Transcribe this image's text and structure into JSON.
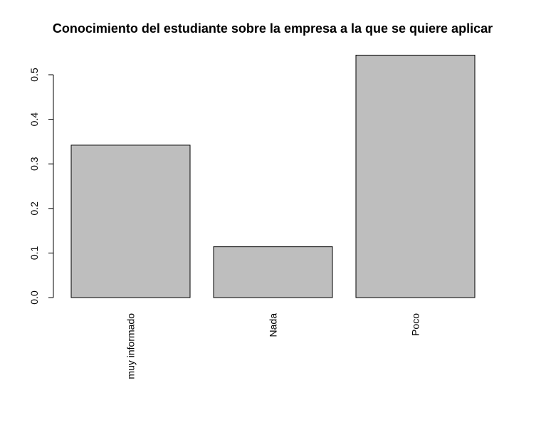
{
  "chart_data": {
    "type": "bar",
    "title": "Conocimiento del estudiante sobre la empresa a la que se quiere aplicar",
    "xlabel": "",
    "ylabel": "",
    "categories": [
      "muy informado",
      "Nada",
      "Poco"
    ],
    "values": [
      0.342,
      0.114,
      0.544
    ],
    "ylim": [
      0,
      0.5
    ],
    "yticks": [
      "0.0",
      "0.1",
      "0.2",
      "0.3",
      "0.4",
      "0.5"
    ],
    "bar_color": "#bebebe",
    "bar_border": "#000000",
    "grid": false,
    "legend": "none"
  }
}
